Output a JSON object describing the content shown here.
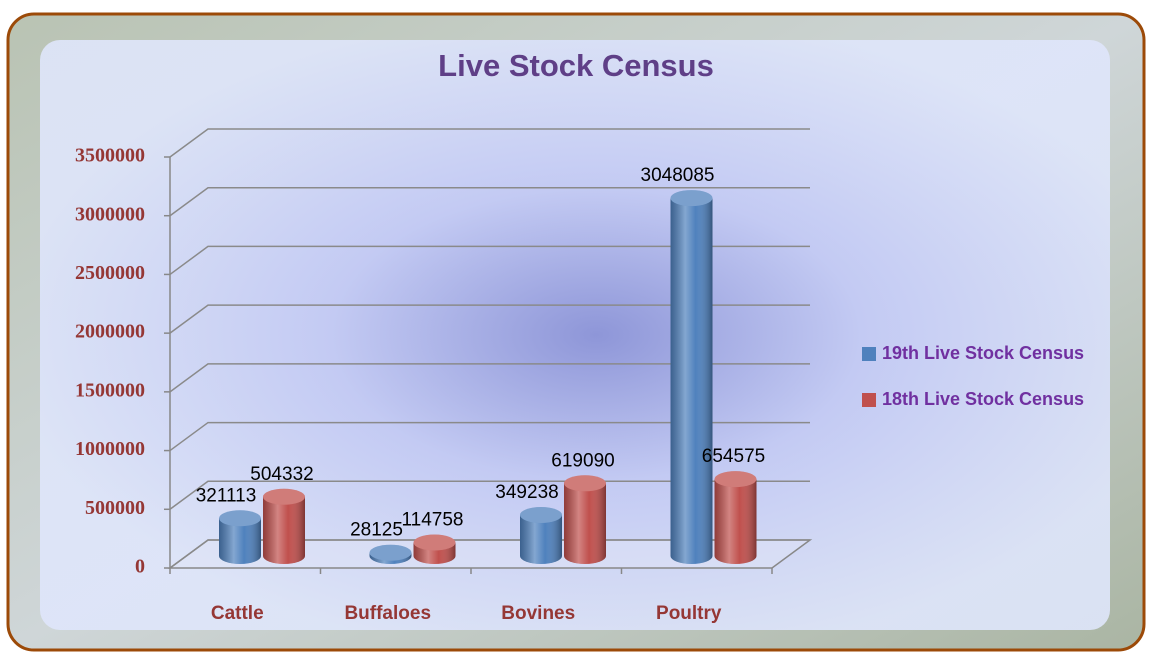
{
  "chart_data": {
    "type": "bar3d",
    "title": "Live Stock Census",
    "categories": [
      "Cattle",
      "Buffaloes",
      "Bovines",
      "Poultry"
    ],
    "series": [
      {
        "name": "19th Live Stock Census",
        "color": "#4f81bd",
        "values": [
          321113,
          28125,
          349238,
          3048085
        ]
      },
      {
        "name": "18th Live Stock Census",
        "color": "#c0504d",
        "values": [
          504332,
          114758,
          619090,
          654575
        ]
      }
    ],
    "ylim": [
      0,
      3500000
    ],
    "yticks": [
      0,
      500000,
      1000000,
      1500000,
      2000000,
      2500000,
      3000000,
      3500000
    ],
    "grid": true,
    "legend": "right"
  }
}
